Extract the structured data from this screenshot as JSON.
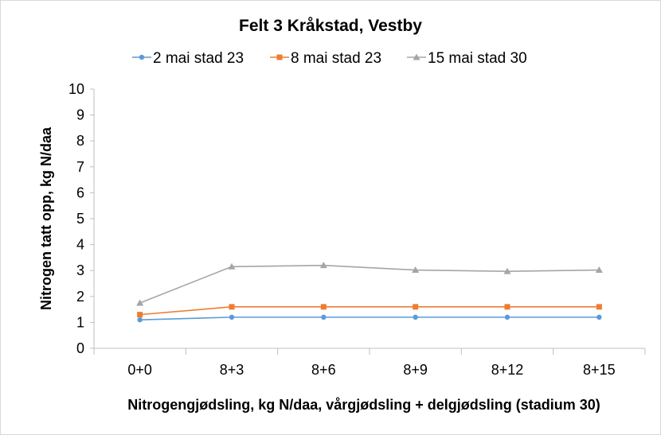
{
  "chart_data": {
    "type": "line",
    "title": "Felt 3 Kråkstad, Vestby",
    "xlabel": "Nitrogengjødsling, kg N/daa, vårgjødsling + delgjødsling (stadium 30)",
    "ylabel": "Nitrogen tatt opp, kg N/daa",
    "categories": [
      "0+0",
      "8+3",
      "8+6",
      "8+9",
      "8+12",
      "8+15"
    ],
    "ylim": [
      0,
      10
    ],
    "yticks": [
      0,
      1,
      2,
      3,
      4,
      5,
      6,
      7,
      8,
      9,
      10
    ],
    "grid": false,
    "legend_position": "top",
    "series": [
      {
        "name": "2 mai stad 23",
        "color": "#5B9BD5",
        "marker": "circle",
        "values": [
          1.1,
          1.2,
          1.2,
          1.2,
          1.2,
          1.2
        ]
      },
      {
        "name": "8 mai stad 23",
        "color": "#ED7D31",
        "marker": "square",
        "values": [
          1.3,
          1.6,
          1.6,
          1.6,
          1.6,
          1.6
        ]
      },
      {
        "name": "15 mai stad 30",
        "color": "#A5A5A5",
        "marker": "triangle",
        "values": [
          1.75,
          3.15,
          3.2,
          3.02,
          2.97,
          3.02
        ]
      }
    ]
  }
}
